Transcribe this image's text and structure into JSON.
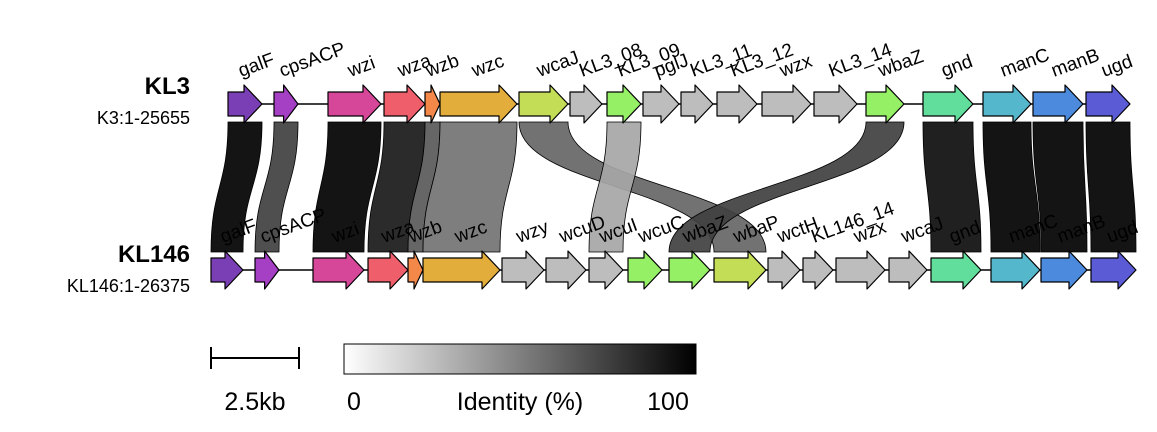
{
  "tracks": [
    {
      "name": "KL3",
      "coords": "K3:1-25655",
      "genes": [
        {
          "name": "galF",
          "color": "#7b3fb5"
        },
        {
          "name": "cpsACP",
          "color": "#a53fc3"
        },
        {
          "name": "wzi",
          "color": "#d6479a"
        },
        {
          "name": "wza",
          "color": "#ee5f6b"
        },
        {
          "name": "wzb",
          "color": "#f48848"
        },
        {
          "name": "wzc",
          "color": "#e3ad3c"
        },
        {
          "name": "wcaJ",
          "color": "#c3dd56"
        },
        {
          "name": "KL3_08",
          "color": "#bdbdbd"
        },
        {
          "name": "KL3_09",
          "color": "#95f066"
        },
        {
          "name": "pglJ",
          "color": "#bdbdbd"
        },
        {
          "name": "KL3_11",
          "color": "#bdbdbd"
        },
        {
          "name": "KL3_12",
          "color": "#bdbdbd"
        },
        {
          "name": "wzx",
          "color": "#bdbdbd"
        },
        {
          "name": "KL3_14",
          "color": "#bdbdbd"
        },
        {
          "name": "wbaZ",
          "color": "#95f066"
        },
        {
          "name": "gnd",
          "color": "#61dd9c"
        },
        {
          "name": "manC",
          "color": "#55b7cb"
        },
        {
          "name": "manB",
          "color": "#4b8add"
        },
        {
          "name": "ugd",
          "color": "#5b5bd6"
        }
      ]
    },
    {
      "name": "KL146",
      "coords": "KL146:1-26375",
      "genes": [
        {
          "name": "galF",
          "color": "#7b3fb5"
        },
        {
          "name": "cpsACP",
          "color": "#a53fc3"
        },
        {
          "name": "wzi",
          "color": "#d6479a"
        },
        {
          "name": "wza",
          "color": "#ee5f6b"
        },
        {
          "name": "wzb",
          "color": "#f48848"
        },
        {
          "name": "wzc",
          "color": "#e3ad3c"
        },
        {
          "name": "wzy",
          "color": "#bdbdbd"
        },
        {
          "name": "wcuD",
          "color": "#bdbdbd"
        },
        {
          "name": "wcuI",
          "color": "#bdbdbd"
        },
        {
          "name": "wcuC",
          "color": "#95f066"
        },
        {
          "name": "wbaZ",
          "color": "#95f066"
        },
        {
          "name": "wbaP",
          "color": "#c3dd56"
        },
        {
          "name": "wctH",
          "color": "#bdbdbd"
        },
        {
          "name": "KL146_14",
          "color": "#bdbdbd"
        },
        {
          "name": "wzx",
          "color": "#bdbdbd"
        },
        {
          "name": "wcaJ",
          "color": "#bdbdbd"
        },
        {
          "name": "gnd",
          "color": "#61dd9c"
        },
        {
          "name": "manC",
          "color": "#55b7cb"
        },
        {
          "name": "manB",
          "color": "#4b8add"
        },
        {
          "name": "ugd",
          "color": "#5b5bd6"
        }
      ]
    }
  ],
  "links": [
    {
      "from": "galF",
      "to": "galF",
      "identity": 100
    },
    {
      "from": "cpsACP",
      "to": "cpsACP",
      "identity": 75
    },
    {
      "from": "wzi",
      "to": "wzi",
      "identity": 100
    },
    {
      "from": "wza",
      "to": "wza",
      "identity": 90
    },
    {
      "from": "wzb",
      "to": "wzb",
      "identity": 65
    },
    {
      "from": "wzc",
      "to": "wzc",
      "identity": 55
    },
    {
      "from": "wcaJ",
      "to": "wbaP",
      "identity": 60
    },
    {
      "from": "KL3_09",
      "to": "wcuI",
      "identity": 35
    },
    {
      "from": "wbaZ",
      "to": "wbaZ",
      "identity": 75
    },
    {
      "from": "gnd",
      "to": "gnd",
      "identity": 95
    },
    {
      "from": "manC",
      "to": "manC",
      "identity": 100
    },
    {
      "from": "manB",
      "to": "manB",
      "identity": 100
    },
    {
      "from": "ugd",
      "to": "ugd",
      "identity": 100
    }
  ],
  "scale_bar": {
    "label": "2.5kb"
  },
  "identity_legend": {
    "min_label": "0",
    "title": "Identity (%)",
    "max_label": "100"
  }
}
